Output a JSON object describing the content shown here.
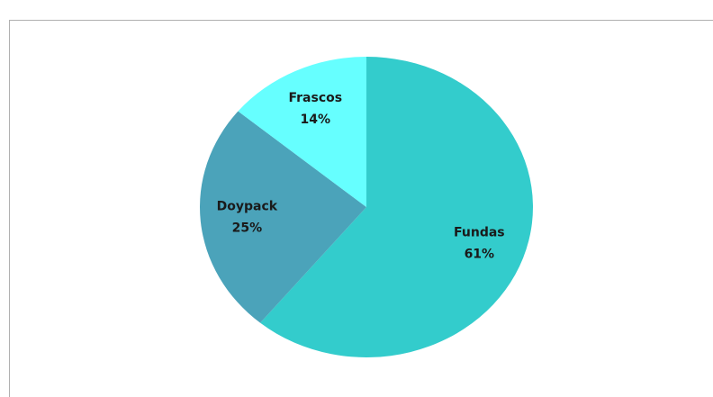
{
  "chart_data": {
    "type": "pie",
    "categories": [
      "Fundas",
      "Doypack",
      "Frascos"
    ],
    "values": [
      61,
      25,
      14
    ],
    "value_labels": [
      "61%",
      "25%",
      "14%"
    ],
    "colors": [
      "#33cccc",
      "#4ba3ba",
      "#66ffff"
    ]
  }
}
